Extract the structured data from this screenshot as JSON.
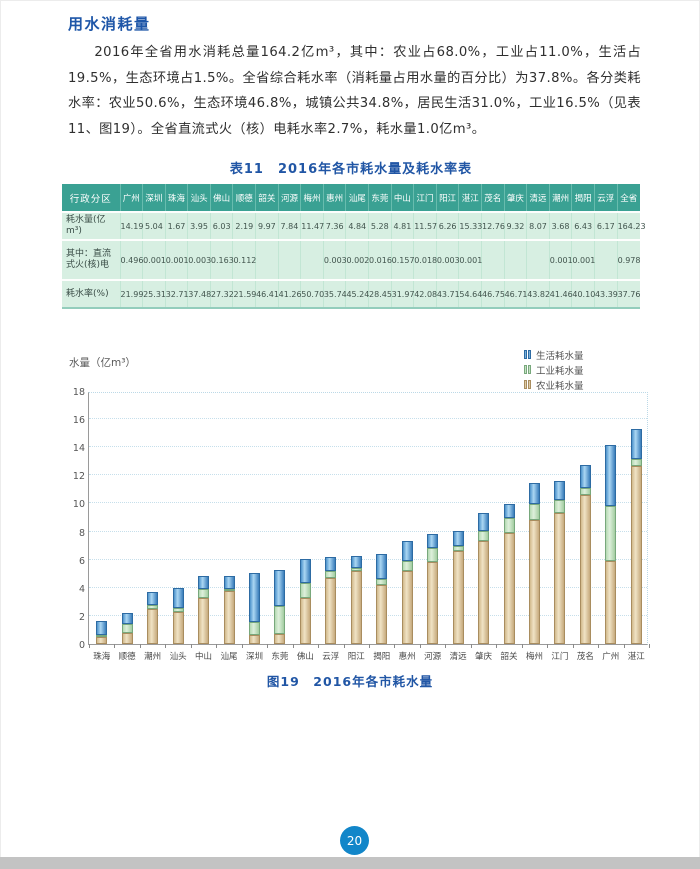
{
  "page": {
    "section_title": "用水消耗量",
    "paragraph": "2016年全省用水消耗总量164.2亿m³，其中：农业占68.0%，工业占11.0%，生活占19.5%，生态环境占1.5%。全省综合耗水率（消耗量占用水量的百分比）为37.8%。各分类耗水率：农业50.6%，生态环境46.8%，城镇公共34.8%，居民生活31.0%，工业16.5%（见表11、图19）。全省直流式火（核）电耗水率2.7%，耗水量1.0亿m³。",
    "page_number": "20"
  },
  "table": {
    "title": "表11　2016年各市耗水量及耗水率表",
    "columns": [
      "行政分区",
      "广州",
      "深圳",
      "珠海",
      "汕头",
      "佛山",
      "顺德",
      "韶关",
      "河源",
      "梅州",
      "惠州",
      "汕尾",
      "东莞",
      "中山",
      "江门",
      "阳江",
      "湛江",
      "茂名",
      "肇庆",
      "清远",
      "潮州",
      "揭阳",
      "云浮",
      "全省"
    ],
    "rows": [
      {
        "label": "耗水量(亿m³)",
        "values": [
          "14.19",
          "5.04",
          "1.67",
          "3.95",
          "6.03",
          "2.19",
          "9.97",
          "7.84",
          "11.47",
          "7.36",
          "4.84",
          "5.28",
          "4.81",
          "11.57",
          "6.26",
          "15.33",
          "12.76",
          "9.32",
          "8.07",
          "3.68",
          "6.43",
          "6.17",
          "164.23"
        ]
      },
      {
        "label": "其中：直流式火(核)电",
        "values": [
          "0.496",
          "0.001",
          "0.001",
          "0.003",
          "0.163",
          "0.112",
          "",
          "",
          "",
          "0.003",
          "0.002",
          "0.016",
          "0.157",
          "0.018",
          "0.003",
          "0.001",
          "",
          "",
          "",
          "0.001",
          "0.001",
          "",
          "0.978"
        ]
      },
      {
        "label": "耗水率(%)",
        "values": [
          "21.99",
          "25.31",
          "32.71",
          "37.48",
          "27.32",
          "21.59",
          "46.41",
          "41.26",
          "50.70",
          "35.74",
          "45.24",
          "28.45",
          "31.97",
          "42.08",
          "43.71",
          "54.64",
          "46.75",
          "46.71",
          "43.82",
          "41.46",
          "40.10",
          "43.39",
          "37.76"
        ]
      }
    ]
  },
  "chart_data": {
    "type": "bar",
    "stacked": true,
    "title": "图19　2016年各市耗水量",
    "ylabel": "水量（亿m³）",
    "ylim": [
      0,
      18
    ],
    "ytick_step": 2,
    "grid": "dotted horizontal",
    "legend_position": "top-right",
    "categories": [
      "珠海",
      "顺德",
      "潮州",
      "汕头",
      "中山",
      "汕尾",
      "深圳",
      "东莞",
      "佛山",
      "云浮",
      "阳江",
      "揭阳",
      "惠州",
      "河源",
      "清远",
      "肇庆",
      "韶关",
      "梅州",
      "江门",
      "茂名",
      "广州",
      "湛江"
    ],
    "series": [
      {
        "key": "agriculture",
        "name": "农业耗水量",
        "color": "#d2ba8d",
        "values": [
          0.5,
          0.8,
          2.5,
          2.28,
          3.25,
          3.75,
          0.64,
          0.71,
          3.26,
          4.7,
          5.2,
          4.17,
          5.19,
          5.84,
          6.65,
          7.3,
          7.9,
          8.85,
          9.3,
          10.62,
          5.9,
          12.65
        ]
      },
      {
        "key": "industry",
        "name": "工业耗水量",
        "color": "#b4d9b2",
        "values": [
          0.15,
          0.6,
          0.3,
          0.27,
          0.65,
          0.18,
          0.93,
          1.98,
          1.1,
          0.47,
          0.2,
          0.47,
          0.69,
          1.0,
          0.3,
          0.77,
          1.08,
          1.08,
          0.92,
          0.45,
          3.91,
          0.49
        ]
      },
      {
        "key": "domestic",
        "name": "生活耗水量",
        "color": "#4d92cb",
        "values": [
          1.02,
          0.79,
          0.88,
          1.4,
          0.91,
          0.91,
          3.47,
          2.59,
          1.67,
          1.0,
          0.86,
          1.79,
          1.48,
          1.0,
          1.12,
          1.25,
          0.99,
          1.54,
          1.35,
          1.69,
          4.38,
          2.19
        ]
      }
    ],
    "totals": [
      1.67,
      2.19,
      3.68,
      3.95,
      4.81,
      4.84,
      5.04,
      5.28,
      6.03,
      6.17,
      6.26,
      6.43,
      7.36,
      7.84,
      8.07,
      9.32,
      9.97,
      11.47,
      11.57,
      12.76,
      14.19,
      15.33
    ]
  }
}
